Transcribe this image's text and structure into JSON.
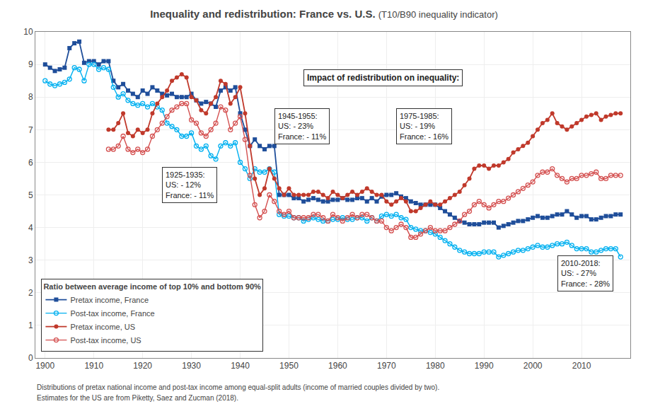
{
  "chart_data": {
    "type": "line",
    "title": "Inequality and redistribution: France vs. U.S.",
    "subtitle": "(T10/B90 inequality indicator)",
    "legend_title": "Ratio between average income of top 10% and bottom 90%",
    "notes": [
      "Distributions of pretax national income and post-tax income among equal-split adults (income of married couples divided by two).",
      "Estimates for the US are from Piketty, Saez and Zucman (2018)."
    ],
    "annotations": [
      "1925-1935:\nUS: - 12%\nFrance: - 11%",
      "Impact of redistribution on inequality:",
      "1945-1955:\nUS: - 23%\nFrance: - 11%",
      "1975-1985:\nUS: - 19%\nFrance: - 16%",
      "2010-2018:\nUS: - 27%\nFrance: - 28%"
    ],
    "series": [
      {
        "name": "Pretax income, France",
        "color": "#1f4e9a",
        "marker": "square",
        "x": [
          1900,
          1901,
          1902,
          1903,
          1904,
          1905,
          1906,
          1907,
          1908,
          1909,
          1910,
          1911,
          1912,
          1913,
          1914,
          1915,
          1916,
          1917,
          1918,
          1919,
          1920,
          1921,
          1922,
          1923,
          1924,
          1925,
          1926,
          1927,
          1928,
          1929,
          1930,
          1931,
          1932,
          1933,
          1934,
          1935,
          1936,
          1937,
          1938,
          1939,
          1940,
          1941,
          1942,
          1943,
          1944,
          1945,
          1946,
          1947,
          1948,
          1949,
          1950,
          1951,
          1952,
          1953,
          1954,
          1955,
          1956,
          1957,
          1958,
          1959,
          1960,
          1961,
          1962,
          1963,
          1964,
          1965,
          1966,
          1967,
          1968,
          1969,
          1970,
          1971,
          1972,
          1973,
          1974,
          1975,
          1976,
          1977,
          1978,
          1979,
          1980,
          1981,
          1982,
          1983,
          1984,
          1985,
          1986,
          1987,
          1988,
          1989,
          1990,
          1991,
          1992,
          1993,
          1994,
          1995,
          1996,
          1997,
          1998,
          1999,
          2000,
          2001,
          2002,
          2003,
          2004,
          2005,
          2006,
          2007,
          2008,
          2009,
          2010,
          2011,
          2012,
          2013,
          2014,
          2015,
          2016,
          2017,
          2018
        ],
        "values": [
          9.0,
          8.9,
          8.8,
          8.85,
          8.9,
          9.5,
          9.65,
          9.7,
          9.05,
          9.1,
          9.1,
          9.0,
          9.1,
          9.1,
          8.5,
          8.3,
          8.4,
          8.2,
          8.1,
          8.0,
          8.2,
          8.1,
          8.3,
          8.2,
          8.1,
          8.05,
          8.1,
          8.0,
          8.0,
          8.0,
          8.1,
          7.9,
          7.8,
          7.85,
          7.8,
          7.7,
          8.2,
          8.3,
          8.2,
          8.3,
          7.5,
          7.0,
          6.5,
          6.7,
          6.5,
          6.4,
          6.5,
          6.5,
          5.0,
          5.0,
          5.0,
          4.9,
          4.9,
          4.8,
          4.85,
          4.9,
          4.85,
          4.8,
          4.8,
          4.85,
          4.85,
          4.9,
          4.85,
          4.85,
          4.9,
          4.9,
          4.8,
          4.9,
          4.8,
          4.95,
          5.0,
          5.0,
          5.05,
          4.95,
          4.9,
          4.8,
          4.75,
          4.7,
          4.7,
          4.7,
          4.7,
          4.6,
          4.5,
          4.4,
          4.3,
          4.2,
          4.15,
          4.1,
          4.1,
          4.1,
          4.15,
          4.15,
          4.15,
          4.0,
          4.05,
          4.1,
          4.15,
          4.2,
          4.2,
          4.25,
          4.3,
          4.35,
          4.3,
          4.3,
          4.35,
          4.4,
          4.4,
          4.5,
          4.4,
          4.3,
          4.35,
          4.35,
          4.25,
          4.25,
          4.3,
          4.35,
          4.35,
          4.4,
          4.4
        ]
      },
      {
        "name": "Post-tax income, France",
        "color": "#00b0f0",
        "marker": "circle-open",
        "x": [
          1900,
          1901,
          1902,
          1903,
          1904,
          1905,
          1906,
          1907,
          1908,
          1909,
          1910,
          1911,
          1912,
          1913,
          1914,
          1915,
          1916,
          1917,
          1918,
          1919,
          1920,
          1921,
          1922,
          1923,
          1924,
          1925,
          1926,
          1927,
          1928,
          1929,
          1930,
          1931,
          1932,
          1933,
          1934,
          1935,
          1936,
          1937,
          1938,
          1939,
          1940,
          1941,
          1942,
          1943,
          1944,
          1945,
          1946,
          1947,
          1948,
          1949,
          1950,
          1951,
          1952,
          1953,
          1954,
          1955,
          1956,
          1957,
          1958,
          1959,
          1960,
          1961,
          1962,
          1963,
          1964,
          1965,
          1966,
          1967,
          1968,
          1969,
          1970,
          1971,
          1972,
          1973,
          1974,
          1975,
          1976,
          1977,
          1978,
          1979,
          1980,
          1981,
          1982,
          1983,
          1984,
          1985,
          1986,
          1987,
          1988,
          1989,
          1990,
          1991,
          1992,
          1993,
          1994,
          1995,
          1996,
          1997,
          1998,
          1999,
          2000,
          2001,
          2002,
          2003,
          2004,
          2005,
          2006,
          2007,
          2008,
          2009,
          2010,
          2011,
          2012,
          2013,
          2014,
          2015,
          2016,
          2017,
          2018
        ],
        "values": [
          8.5,
          8.4,
          8.35,
          8.4,
          8.45,
          8.55,
          8.9,
          8.85,
          8.5,
          9.0,
          9.0,
          8.85,
          8.9,
          8.85,
          8.3,
          8.0,
          8.1,
          7.9,
          7.8,
          7.75,
          7.8,
          7.7,
          7.8,
          7.7,
          7.6,
          7.2,
          7.1,
          7.0,
          6.8,
          6.8,
          6.9,
          6.5,
          6.4,
          6.5,
          6.2,
          6.1,
          6.5,
          6.6,
          6.5,
          6.6,
          6.0,
          5.8,
          5.5,
          5.8,
          5.7,
          5.7,
          5.8,
          5.7,
          4.4,
          4.35,
          4.35,
          4.3,
          4.3,
          4.2,
          4.25,
          4.3,
          4.25,
          4.2,
          4.2,
          4.25,
          4.25,
          4.3,
          4.25,
          4.25,
          4.3,
          4.3,
          4.2,
          4.3,
          4.2,
          4.35,
          4.4,
          4.35,
          4.4,
          4.3,
          4.25,
          4.0,
          3.95,
          3.9,
          3.9,
          3.85,
          3.8,
          3.7,
          3.6,
          3.5,
          3.4,
          3.3,
          3.25,
          3.2,
          3.2,
          3.2,
          3.25,
          3.25,
          3.25,
          3.1,
          3.15,
          3.2,
          3.25,
          3.3,
          3.3,
          3.35,
          3.4,
          3.45,
          3.4,
          3.4,
          3.45,
          3.5,
          3.5,
          3.55,
          3.45,
          3.35,
          3.35,
          3.35,
          3.25,
          3.25,
          3.3,
          3.35,
          3.35,
          3.35,
          3.1
        ]
      },
      {
        "name": "Pretax income, US",
        "color": "#c0392b",
        "marker": "circle",
        "x": [
          1913,
          1914,
          1915,
          1916,
          1917,
          1918,
          1919,
          1920,
          1921,
          1922,
          1923,
          1924,
          1925,
          1926,
          1927,
          1928,
          1929,
          1930,
          1931,
          1932,
          1933,
          1934,
          1935,
          1936,
          1937,
          1938,
          1939,
          1940,
          1941,
          1942,
          1943,
          1944,
          1945,
          1946,
          1947,
          1948,
          1949,
          1950,
          1951,
          1952,
          1953,
          1954,
          1955,
          1956,
          1957,
          1958,
          1959,
          1960,
          1961,
          1962,
          1963,
          1964,
          1965,
          1966,
          1967,
          1968,
          1969,
          1970,
          1971,
          1972,
          1973,
          1974,
          1975,
          1976,
          1977,
          1978,
          1979,
          1980,
          1981,
          1982,
          1983,
          1984,
          1985,
          1986,
          1987,
          1988,
          1989,
          1990,
          1991,
          1992,
          1993,
          1994,
          1995,
          1996,
          1997,
          1998,
          1999,
          2000,
          2001,
          2002,
          2003,
          2004,
          2005,
          2006,
          2007,
          2008,
          2009,
          2010,
          2011,
          2012,
          2013,
          2014,
          2015,
          2016,
          2017,
          2018
        ],
        "values": [
          7.0,
          7.0,
          7.2,
          7.5,
          6.9,
          6.8,
          7.0,
          6.9,
          7.0,
          7.5,
          7.8,
          8.0,
          8.2,
          8.5,
          8.6,
          8.7,
          8.6,
          8.0,
          7.9,
          7.6,
          7.5,
          7.8,
          8.0,
          8.5,
          8.4,
          7.8,
          8.0,
          8.3,
          7.5,
          6.5,
          5.5,
          5.0,
          5.2,
          5.8,
          5.5,
          5.2,
          5.0,
          5.2,
          5.0,
          5.0,
          5.0,
          5.0,
          5.1,
          5.1,
          5.0,
          4.9,
          5.1,
          5.0,
          4.9,
          5.0,
          5.1,
          5.0,
          5.1,
          5.2,
          5.1,
          5.0,
          5.0,
          4.8,
          4.7,
          4.8,
          4.9,
          4.8,
          4.5,
          4.5,
          4.6,
          4.7,
          4.8,
          4.7,
          4.7,
          4.8,
          4.9,
          5.0,
          5.1,
          5.3,
          5.5,
          5.8,
          5.9,
          5.9,
          5.8,
          5.9,
          5.9,
          6.0,
          6.1,
          6.3,
          6.4,
          6.5,
          6.6,
          6.8,
          7.0,
          7.2,
          7.3,
          7.5,
          7.2,
          7.1,
          7.0,
          7.1,
          7.2,
          7.3,
          7.4,
          7.45,
          7.5,
          7.3,
          7.4,
          7.45,
          7.5,
          7.5
        ]
      },
      {
        "name": "Post-tax income, US",
        "color": "#d45050",
        "marker": "circle-open",
        "x": [
          1913,
          1914,
          1915,
          1916,
          1917,
          1918,
          1919,
          1920,
          1921,
          1922,
          1923,
          1924,
          1925,
          1926,
          1927,
          1928,
          1929,
          1930,
          1931,
          1932,
          1933,
          1934,
          1935,
          1936,
          1937,
          1938,
          1939,
          1940,
          1941,
          1942,
          1943,
          1944,
          1945,
          1946,
          1947,
          1948,
          1949,
          1950,
          1951,
          1952,
          1953,
          1954,
          1955,
          1956,
          1957,
          1958,
          1959,
          1960,
          1961,
          1962,
          1963,
          1964,
          1965,
          1966,
          1967,
          1968,
          1969,
          1970,
          1971,
          1972,
          1973,
          1974,
          1975,
          1976,
          1977,
          1978,
          1979,
          1980,
          1981,
          1982,
          1983,
          1984,
          1985,
          1986,
          1987,
          1988,
          1989,
          1990,
          1991,
          1992,
          1993,
          1994,
          1995,
          1996,
          1997,
          1998,
          1999,
          2000,
          2001,
          2002,
          2003,
          2004,
          2005,
          2006,
          2007,
          2008,
          2009,
          2010,
          2011,
          2012,
          2013,
          2014,
          2015,
          2016,
          2017,
          2018
        ],
        "values": [
          6.4,
          6.4,
          6.5,
          6.8,
          6.4,
          6.3,
          6.4,
          6.3,
          6.4,
          6.8,
          7.0,
          7.2,
          7.4,
          7.6,
          7.7,
          7.8,
          7.8,
          7.3,
          7.2,
          6.9,
          6.8,
          7.0,
          7.2,
          7.7,
          7.6,
          7.0,
          7.2,
          7.4,
          6.7,
          5.6,
          4.7,
          4.3,
          4.5,
          5.0,
          4.8,
          4.5,
          4.4,
          4.5,
          4.3,
          4.3,
          4.3,
          4.3,
          4.4,
          4.4,
          4.3,
          4.2,
          4.4,
          4.3,
          4.2,
          4.3,
          4.4,
          4.3,
          4.4,
          4.4,
          4.3,
          4.2,
          4.2,
          4.0,
          3.9,
          4.0,
          4.1,
          4.0,
          3.7,
          3.7,
          3.8,
          3.9,
          4.0,
          3.9,
          3.9,
          3.9,
          4.0,
          4.1,
          4.2,
          4.4,
          4.5,
          4.7,
          4.8,
          4.7,
          4.6,
          4.7,
          4.8,
          4.8,
          4.9,
          5.0,
          5.1,
          5.2,
          5.3,
          5.4,
          5.6,
          5.7,
          5.7,
          5.8,
          5.6,
          5.5,
          5.4,
          5.5,
          5.5,
          5.6,
          5.6,
          5.65,
          5.7,
          5.5,
          5.5,
          5.6,
          5.6,
          5.6
        ]
      }
    ],
    "xlim": [
      1898,
      2020
    ],
    "xticks": [
      1900,
      1910,
      1920,
      1930,
      1940,
      1950,
      1960,
      1970,
      1980,
      1990,
      2000,
      2010
    ],
    "ylim": [
      0,
      10
    ],
    "yticks": [
      0,
      1,
      2,
      3,
      4,
      5,
      6,
      7,
      8,
      9,
      10
    ],
    "grid": true,
    "legend": "lower left"
  }
}
